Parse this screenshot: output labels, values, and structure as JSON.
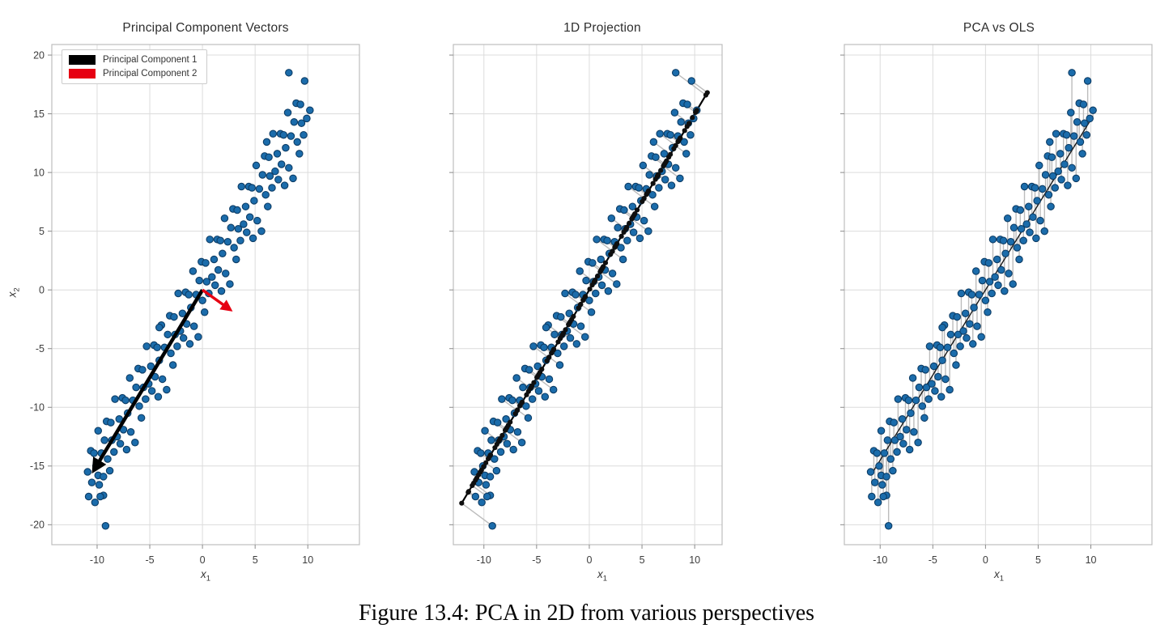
{
  "figure_caption": "Figure 13.4: PCA in 2D from various perspectives",
  "colors": {
    "point_fill": "#1b6cab",
    "point_edge": "#0d3d66",
    "grid": "#dcdcdc",
    "frame": "#bdbdbd",
    "tick": "#8a8a8a",
    "tick_label": "#3d3d3d",
    "connector": "#bcbcbc",
    "pc1": "#000000",
    "pc2": "#e60012",
    "projection_point": "#0f0f0f",
    "pca_line_color": "#000000",
    "ols_line_color": "#1a1a1a"
  },
  "chart_data": {
    "type": "scatter",
    "xticks": [
      -10,
      -5,
      0,
      5,
      10
    ],
    "yticks": [
      -20,
      -15,
      -10,
      -5,
      0,
      5,
      10,
      15,
      20
    ],
    "ylim": [
      -21.7,
      20.9
    ],
    "pca_line": {
      "slope": 1.5,
      "intercept": 0
    },
    "ols_line": {
      "slope": 1.45,
      "intercept": 0
    },
    "points": [
      [
        -10.9,
        -15.5
      ],
      [
        -10.8,
        -17.6
      ],
      [
        -10.6,
        -13.7
      ],
      [
        -10.5,
        -16.4
      ],
      [
        -10.3,
        -13.9
      ],
      [
        -10.2,
        -18.1
      ],
      [
        -10.1,
        -15.0
      ],
      [
        -9.9,
        -12.0
      ],
      [
        -9.8,
        -16.6
      ],
      [
        -9.6,
        -13.9
      ],
      [
        -9.4,
        -17.5
      ],
      [
        -9.3,
        -12.8
      ],
      [
        -9.1,
        -11.2
      ],
      [
        -9.0,
        -14.4
      ],
      [
        -8.8,
        -15.4
      ],
      [
        -8.7,
        -11.3
      ],
      [
        -8.6,
        -12.8
      ],
      [
        -8.4,
        -13.8
      ],
      [
        -8.3,
        -9.3
      ],
      [
        -8.1,
        -12.5
      ],
      [
        -7.9,
        -11.0
      ],
      [
        -7.8,
        -13.1
      ],
      [
        -7.6,
        -9.2
      ],
      [
        -7.5,
        -11.9
      ],
      [
        -7.3,
        -9.4
      ],
      [
        -7.2,
        -13.6
      ],
      [
        -7.1,
        -10.5
      ],
      [
        -6.9,
        -7.5
      ],
      [
        -6.8,
        -12.1
      ],
      [
        -6.6,
        -9.4
      ],
      [
        -6.4,
        -13.0
      ],
      [
        -6.3,
        -8.3
      ],
      [
        -6.1,
        -6.7
      ],
      [
        -6.0,
        -9.9
      ],
      [
        -5.8,
        -10.9
      ],
      [
        -5.7,
        -6.8
      ],
      [
        -5.6,
        -8.3
      ],
      [
        -5.4,
        -9.3
      ],
      [
        -5.3,
        -4.8
      ],
      [
        -5.1,
        -8.0
      ],
      [
        -4.9,
        -6.5
      ],
      [
        -4.8,
        -8.6
      ],
      [
        -4.6,
        -4.7
      ],
      [
        -4.5,
        -7.4
      ],
      [
        -4.3,
        -4.9
      ],
      [
        -4.2,
        -9.1
      ],
      [
        -4.1,
        -6.0
      ],
      [
        -3.9,
        -3.0
      ],
      [
        -3.8,
        -7.6
      ],
      [
        -3.6,
        -4.9
      ],
      [
        -3.4,
        -8.5
      ],
      [
        -3.3,
        -3.8
      ],
      [
        -3.1,
        -2.2
      ],
      [
        -3.0,
        -5.4
      ],
      [
        -2.8,
        -6.4
      ],
      [
        -2.7,
        -2.3
      ],
      [
        -2.6,
        -3.8
      ],
      [
        -2.4,
        -4.8
      ],
      [
        -2.3,
        -0.3
      ],
      [
        -2.1,
        -3.5
      ],
      [
        -1.9,
        -2.0
      ],
      [
        -1.8,
        -4.1
      ],
      [
        -1.6,
        -0.2
      ],
      [
        -1.5,
        -2.9
      ],
      [
        -1.3,
        -0.4
      ],
      [
        -1.2,
        -4.6
      ],
      [
        -1.1,
        -1.5
      ],
      [
        -0.9,
        1.6
      ],
      [
        -0.8,
        -3.1
      ],
      [
        -0.6,
        -0.4
      ],
      [
        -0.4,
        -4.0
      ],
      [
        -0.3,
        0.8
      ],
      [
        -0.1,
        2.4
      ],
      [
        0.0,
        -0.9
      ],
      [
        0.2,
        -1.9
      ],
      [
        0.3,
        2.3
      ],
      [
        0.4,
        0.7
      ],
      [
        0.6,
        -0.3
      ],
      [
        0.7,
        4.3
      ],
      [
        0.9,
        1.1
      ],
      [
        1.1,
        2.6
      ],
      [
        1.2,
        0.4
      ],
      [
        1.4,
        4.3
      ],
      [
        1.5,
        1.7
      ],
      [
        1.7,
        4.2
      ],
      [
        1.8,
        -0.1
      ],
      [
        1.9,
        3.1
      ],
      [
        2.1,
        6.1
      ],
      [
        2.2,
        1.4
      ],
      [
        2.4,
        4.1
      ],
      [
        2.6,
        0.5
      ],
      [
        2.7,
        5.3
      ],
      [
        2.9,
        6.9
      ],
      [
        3.0,
        3.6
      ],
      [
        3.2,
        2.6
      ],
      [
        3.3,
        6.8
      ],
      [
        3.4,
        5.2
      ],
      [
        3.6,
        4.2
      ],
      [
        3.7,
        8.8
      ],
      [
        3.9,
        5.6
      ],
      [
        4.1,
        7.1
      ],
      [
        4.2,
        4.9
      ],
      [
        4.4,
        8.8
      ],
      [
        4.5,
        6.2
      ],
      [
        4.7,
        8.7
      ],
      [
        4.8,
        4.4
      ],
      [
        4.9,
        7.6
      ],
      [
        5.1,
        10.6
      ],
      [
        5.2,
        5.9
      ],
      [
        5.4,
        8.6
      ],
      [
        5.6,
        5.0
      ],
      [
        5.7,
        9.8
      ],
      [
        5.9,
        11.4
      ],
      [
        6.0,
        8.1
      ],
      [
        6.2,
        7.1
      ],
      [
        6.3,
        11.3
      ],
      [
        6.4,
        9.7
      ],
      [
        6.6,
        8.7
      ],
      [
        6.7,
        13.3
      ],
      [
        6.9,
        10.1
      ],
      [
        7.1,
        11.6
      ],
      [
        7.2,
        9.4
      ],
      [
        7.4,
        13.3
      ],
      [
        7.5,
        10.7
      ],
      [
        7.7,
        13.2
      ],
      [
        7.8,
        8.9
      ],
      [
        7.9,
        12.1
      ],
      [
        8.1,
        15.1
      ],
      [
        8.2,
        10.4
      ],
      [
        8.4,
        13.1
      ],
      [
        8.6,
        9.5
      ],
      [
        8.7,
        14.3
      ],
      [
        8.9,
        15.9
      ],
      [
        9.0,
        12.6
      ],
      [
        9.2,
        11.6
      ],
      [
        9.3,
        15.8
      ],
      [
        9.4,
        14.2
      ],
      [
        9.6,
        13.2
      ],
      [
        9.7,
        17.8
      ],
      [
        9.9,
        14.6
      ],
      [
        -9.2,
        -20.1
      ],
      [
        -9.7,
        -17.6
      ],
      [
        8.2,
        18.5
      ],
      [
        10.2,
        15.3
      ],
      [
        -9.9,
        -15.8
      ],
      [
        -9.4,
        -15.9
      ],
      [
        6.1,
        12.6
      ],
      [
        -4.1,
        -3.2
      ]
    ],
    "panels": [
      {
        "title": "Principal Component Vectors",
        "xlabel_base": "x",
        "xlabel_sub": "1",
        "ylabel_base": "x",
        "ylabel_sub": "2",
        "xlim": [
          -14.3,
          14.9
        ],
        "show_ytick_labels": true,
        "connectors": "none",
        "line": null,
        "projection_points": false,
        "legend": [
          {
            "label": "Principal Component 1",
            "color": "#000000"
          },
          {
            "label": "Principal Component 2",
            "color": "#e60012"
          }
        ],
        "arrows": [
          {
            "name": "principal-component-1",
            "from": [
              0,
              0
            ],
            "to": [
              -10.2,
              -15.2
            ],
            "color": "#000000",
            "width": 4.5
          },
          {
            "name": "principal-component-2",
            "from": [
              0,
              0
            ],
            "to": [
              2.5,
              -1.6
            ],
            "color": "#e60012",
            "width": 3.5
          }
        ]
      },
      {
        "title": "1D Projection",
        "xlabel_base": "x",
        "xlabel_sub": "1",
        "xlim": [
          -12.9,
          12.6
        ],
        "show_ytick_labels": false,
        "connectors": "perpendicular",
        "line": "pca",
        "projection_points": true
      },
      {
        "title": "PCA vs OLS",
        "xlabel_base": "x",
        "xlabel_sub": "1",
        "xlim": [
          -13.4,
          15.8
        ],
        "show_ytick_labels": false,
        "connectors": "vertical",
        "line": "ols",
        "projection_points": false
      }
    ]
  }
}
